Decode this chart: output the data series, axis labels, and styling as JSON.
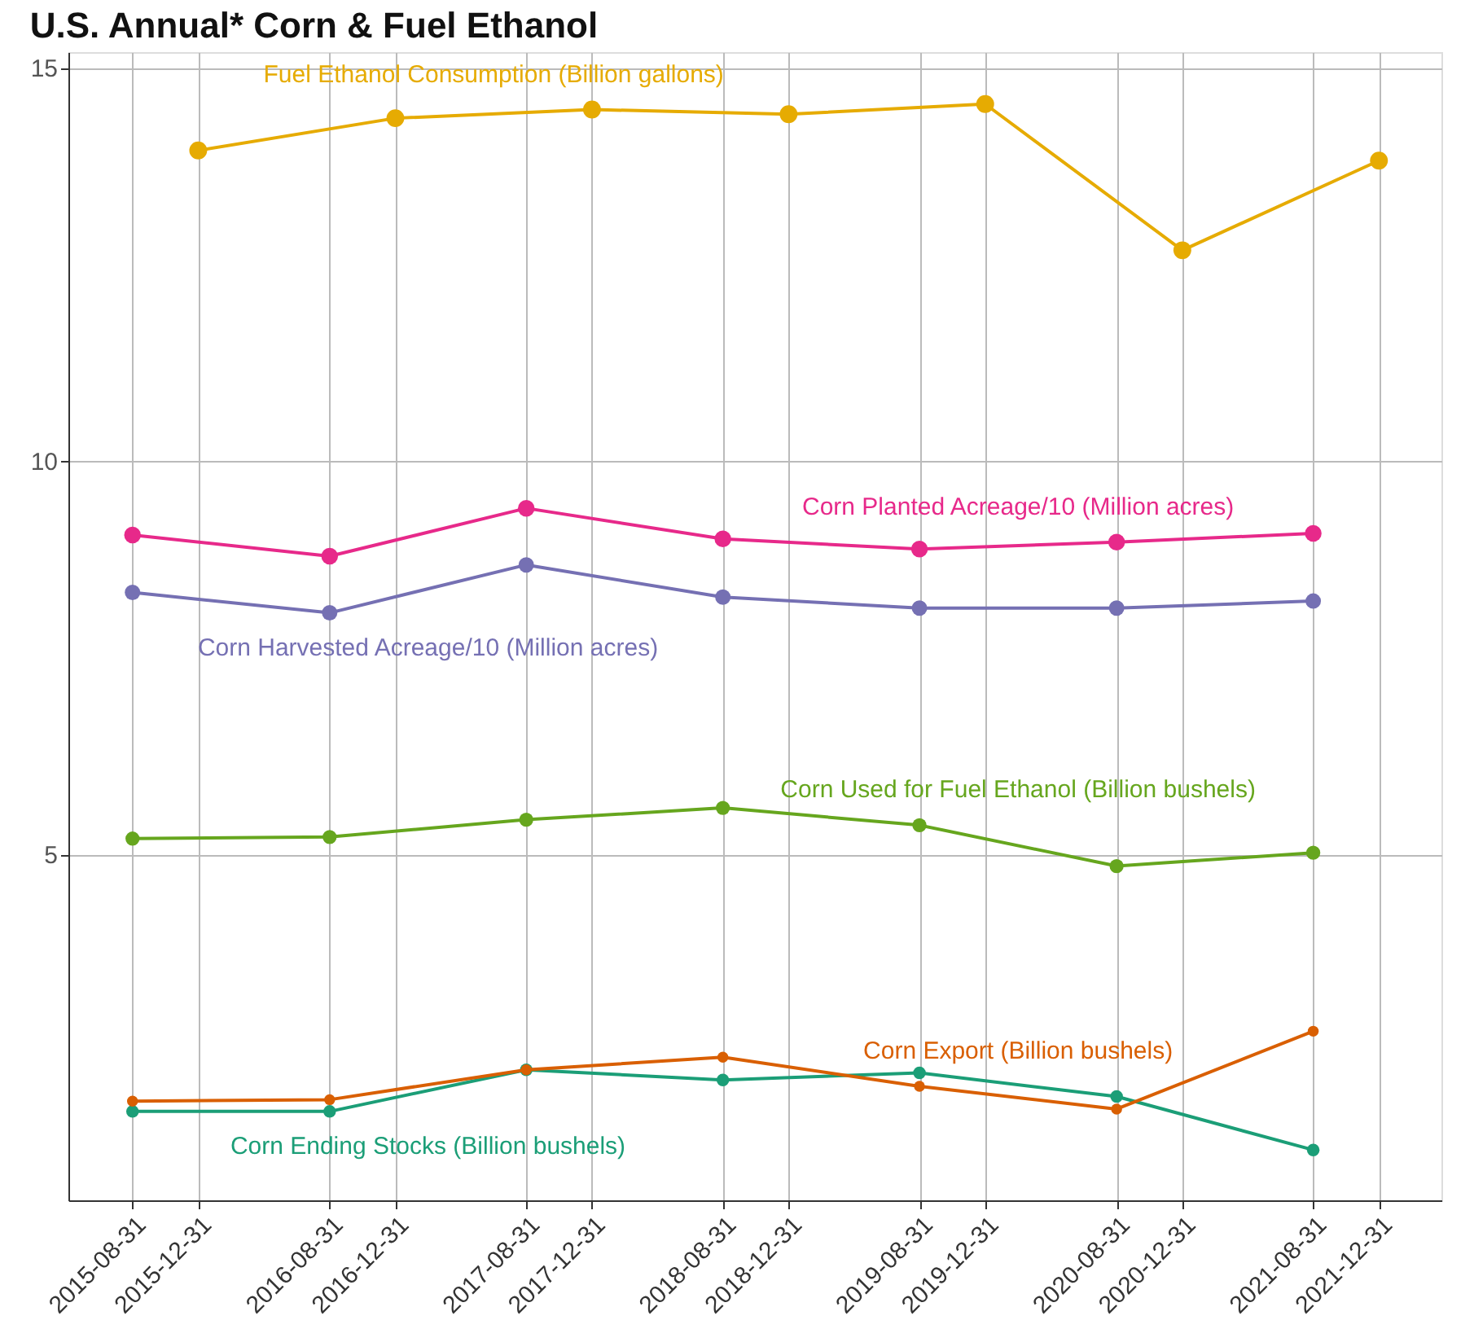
{
  "chart_data": {
    "type": "line",
    "title": "U.S. Annual* Corn & Fuel Ethanol",
    "xlim": [
      "2015-05-04",
      "2022-04-26"
    ],
    "xticks": [
      "2015-08-31",
      "2015-12-31",
      "2016-08-31",
      "2016-12-31",
      "2017-08-31",
      "2017-12-31",
      "2018-08-31",
      "2018-12-31",
      "2019-08-31",
      "2019-12-31",
      "2020-08-31",
      "2020-12-31",
      "2021-08-31",
      "2021-12-31"
    ],
    "ylim": [
      0.6,
      15.2
    ],
    "yticks": [
      5,
      10,
      15
    ],
    "grid": true,
    "marker": "circle",
    "line_style": "solid",
    "series": [
      {
        "name": "Fuel Ethanol Consumption (Billion gallons)",
        "color": "#e6ab02",
        "x": [
          "2015-12-31",
          "2016-12-31",
          "2017-12-31",
          "2018-12-31",
          "2019-12-31",
          "2020-12-31",
          "2021-12-31"
        ],
        "values": [
          13.95,
          14.36,
          14.47,
          14.41,
          14.54,
          12.68,
          13.82
        ]
      },
      {
        "name": "Corn Planted Acreage/10 (Million acres)",
        "color": "#e7298a",
        "x": [
          "2015-08-31",
          "2016-08-31",
          "2017-08-31",
          "2018-08-31",
          "2019-08-31",
          "2020-08-31",
          "2021-08-31"
        ],
        "values": [
          9.06,
          8.79,
          9.4,
          9.01,
          8.88,
          8.97,
          9.08
        ]
      },
      {
        "name": "Corn Harvested Acreage/10 (Million acres)",
        "color": "#7570b3",
        "x": [
          "2015-08-31",
          "2016-08-31",
          "2017-08-31",
          "2018-08-31",
          "2019-08-31",
          "2020-08-31",
          "2021-08-31"
        ],
        "values": [
          8.33,
          8.07,
          8.68,
          8.27,
          8.13,
          8.13,
          8.22
        ]
      },
      {
        "name": "Corn Used for Fuel Ethanol (Billion bushels)",
        "color": "#66a61e",
        "x": [
          "2015-08-31",
          "2016-08-31",
          "2017-08-31",
          "2018-08-31",
          "2019-08-31",
          "2020-08-31",
          "2021-08-31"
        ],
        "values": [
          5.2,
          5.22,
          5.44,
          5.59,
          5.37,
          4.85,
          5.02
        ]
      },
      {
        "name": "Corn Ending Stocks (Billion bushels)",
        "color": "#1b9e77",
        "x": [
          "2015-08-31",
          "2016-08-31",
          "2017-08-31",
          "2018-08-31",
          "2019-08-31",
          "2020-08-31",
          "2021-08-31"
        ],
        "values": [
          1.73,
          1.73,
          2.26,
          2.13,
          2.22,
          1.92,
          1.24
        ]
      },
      {
        "name": "Corn Export (Billion bushels)",
        "color": "#d95f02",
        "x": [
          "2015-08-31",
          "2016-08-31",
          "2017-08-31",
          "2018-08-31",
          "2019-08-31",
          "2020-08-31",
          "2021-08-31"
        ],
        "values": [
          1.86,
          1.88,
          2.26,
          2.42,
          2.05,
          1.76,
          2.75
        ]
      }
    ]
  }
}
